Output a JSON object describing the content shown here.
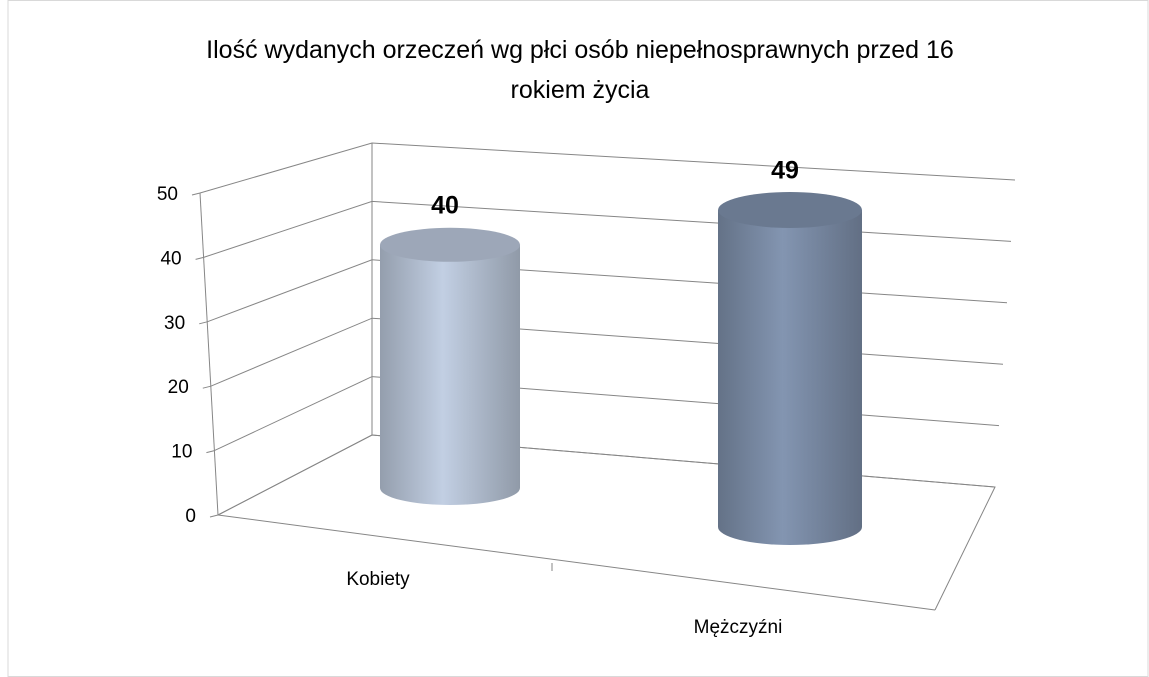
{
  "chart_data": {
    "type": "bar3d-cylinder",
    "title": "Ilość wydanych orzeczeń wg płci osób niepełnosprawnych przed 16 rokiem życia",
    "categories": [
      "Kobiety",
      "Mężczyźni"
    ],
    "values": [
      40,
      49
    ],
    "colors": [
      "#b9c5d8",
      "#7d8ea9"
    ],
    "ylim": [
      0,
      50
    ],
    "yticks": [
      0,
      10,
      20,
      30,
      40,
      50
    ],
    "grid": true
  }
}
